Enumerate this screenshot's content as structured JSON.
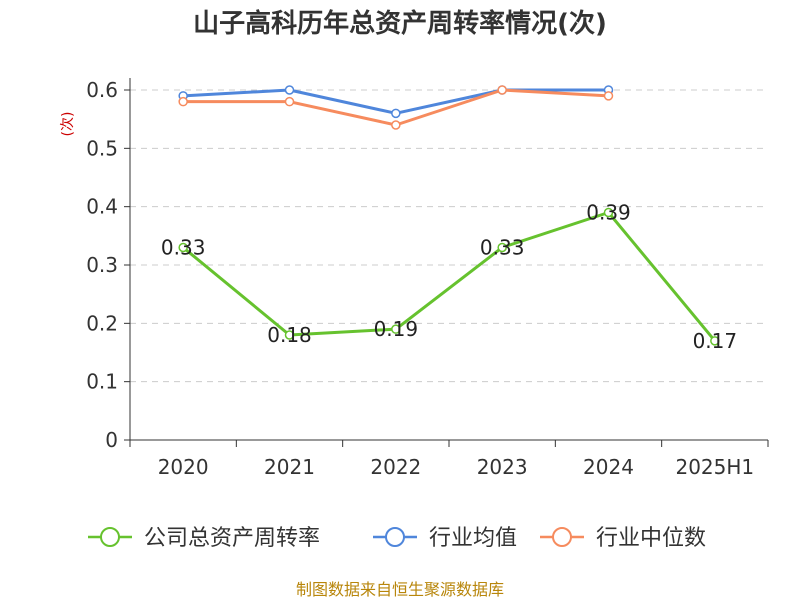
{
  "chart_data": {
    "type": "line",
    "title": "山子高科历年总资产周转率情况(次)",
    "ylabel": "(次)",
    "xlabel": "",
    "categories": [
      "2020",
      "2021",
      "2022",
      "2023",
      "2024",
      "2025H1"
    ],
    "ylim": [
      0,
      0.6
    ],
    "yticks": [
      0,
      0.1,
      0.2,
      0.3,
      0.4,
      0.5,
      0.6
    ],
    "ytick_labels": [
      "0",
      "0.1",
      "0.2",
      "0.3",
      "0.4",
      "0.5",
      "0.6"
    ],
    "grid": true,
    "legend_position": "bottom",
    "series": [
      {
        "name": "公司总资产周转率",
        "color": "#66c22e",
        "values": [
          0.33,
          0.18,
          0.19,
          0.33,
          0.39,
          0.17
        ],
        "labels": [
          "0.33",
          "0.18",
          "0.19",
          "0.33",
          "0.39",
          "0.17"
        ]
      },
      {
        "name": "行业均值",
        "color": "#4f86db",
        "values": [
          0.59,
          0.6,
          0.56,
          0.6,
          0.6,
          null
        ]
      },
      {
        "name": "行业中位数",
        "color": "#f68b5e",
        "values": [
          0.58,
          0.58,
          0.54,
          0.6,
          0.59,
          null
        ]
      }
    ],
    "source": "制图数据来自恒生聚源数据库"
  }
}
